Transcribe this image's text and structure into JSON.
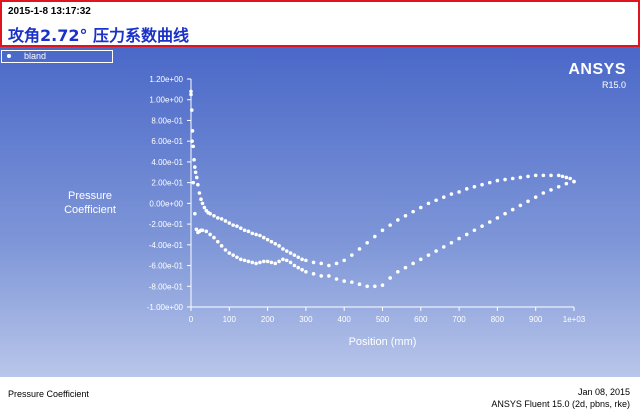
{
  "header": {
    "timestamp": "2015-1-8 13:17:32",
    "title": "攻角2.72° 压力系数曲线"
  },
  "brand": {
    "name": "ANSYS",
    "version": "R15.0"
  },
  "footer": {
    "left": "Pressure Coefficient",
    "date": "Jan 08, 2015",
    "version": "ANSYS Fluent 15.0 (2d, pbns, rke)"
  },
  "colors": {
    "header_border": "#e0141e",
    "title": "#1a32c8",
    "plot_top": "#4a68c8",
    "plot_bottom": "#b9c6ea",
    "points": "#ffffff"
  },
  "chart_data": {
    "type": "scatter",
    "xlabel": "Position (mm)",
    "ylabel_lines": [
      "Pressure",
      "Coefficient"
    ],
    "xlim": [
      0,
      1000
    ],
    "ylim": [
      -1.0,
      1.2
    ],
    "x_ticks": [
      {
        "v": 0,
        "label": "0"
      },
      {
        "v": 100,
        "label": "100"
      },
      {
        "v": 200,
        "label": "200"
      },
      {
        "v": 300,
        "label": "300"
      },
      {
        "v": 400,
        "label": "400"
      },
      {
        "v": 500,
        "label": "500"
      },
      {
        "v": 600,
        "label": "600"
      },
      {
        "v": 700,
        "label": "700"
      },
      {
        "v": 800,
        "label": "800"
      },
      {
        "v": 900,
        "label": "900"
      },
      {
        "v": 1000,
        "label": "1e+03"
      }
    ],
    "y_ticks": [
      {
        "v": 1.2,
        "label": "1.20e+00"
      },
      {
        "v": 1.0,
        "label": "1.00e+00"
      },
      {
        "v": 0.8,
        "label": "8.00e-01"
      },
      {
        "v": 0.6,
        "label": "6.00e-01"
      },
      {
        "v": 0.4,
        "label": "4.00e-01"
      },
      {
        "v": 0.2,
        "label": "2.00e-01"
      },
      {
        "v": 0.0,
        "label": "0.00e+00"
      },
      {
        "v": -0.2,
        "label": "-2.00e-01"
      },
      {
        "v": -0.4,
        "label": "-4.00e-01"
      },
      {
        "v": -0.6,
        "label": "-6.00e-01"
      },
      {
        "v": -0.8,
        "label": "-8.00e-01"
      },
      {
        "v": -1.0,
        "label": "-1.00e+00"
      }
    ],
    "legend": [
      "bland"
    ],
    "legend_position": "top-left",
    "series": [
      {
        "name": "bland",
        "upper_x": [
          0,
          2,
          4,
          6,
          8,
          10,
          12,
          15,
          18,
          22,
          26,
          30,
          35,
          40,
          45,
          50,
          60,
          70,
          80,
          90,
          100,
          110,
          120,
          130,
          140,
          150,
          160,
          170,
          180,
          190,
          200,
          210,
          220,
          230,
          240,
          250,
          260,
          270,
          280,
          290,
          300,
          320,
          340,
          360,
          380,
          400,
          420,
          440,
          460,
          480,
          500,
          520,
          540,
          560,
          580,
          600,
          620,
          640,
          660,
          680,
          700,
          720,
          740,
          760,
          780,
          800,
          820,
          840,
          860,
          880,
          900,
          920,
          940,
          960,
          970,
          980,
          990,
          1000
        ],
        "upper_y": [
          1.08,
          0.9,
          0.7,
          0.55,
          0.42,
          0.35,
          0.3,
          0.25,
          0.18,
          0.1,
          0.04,
          0.0,
          -0.04,
          -0.07,
          -0.09,
          -0.1,
          -0.12,
          -0.14,
          -0.15,
          -0.17,
          -0.19,
          -0.21,
          -0.22,
          -0.24,
          -0.26,
          -0.27,
          -0.29,
          -0.3,
          -0.31,
          -0.33,
          -0.35,
          -0.37,
          -0.39,
          -0.41,
          -0.44,
          -0.46,
          -0.48,
          -0.5,
          -0.52,
          -0.54,
          -0.55,
          -0.57,
          -0.58,
          -0.6,
          -0.58,
          -0.55,
          -0.5,
          -0.44,
          -0.38,
          -0.32,
          -0.26,
          -0.21,
          -0.16,
          -0.12,
          -0.08,
          -0.04,
          0.0,
          0.03,
          0.06,
          0.09,
          0.11,
          0.14,
          0.16,
          0.18,
          0.2,
          0.22,
          0.23,
          0.24,
          0.25,
          0.26,
          0.27,
          0.27,
          0.27,
          0.27,
          0.26,
          0.25,
          0.24,
          0.21
        ],
        "lower_x": [
          0,
          3,
          6,
          10,
          14,
          18,
          22,
          26,
          30,
          40,
          50,
          60,
          70,
          80,
          90,
          100,
          110,
          120,
          130,
          140,
          150,
          160,
          170,
          180,
          190,
          200,
          210,
          220,
          230,
          240,
          250,
          260,
          270,
          280,
          290,
          300,
          320,
          340,
          360,
          380,
          400,
          420,
          440,
          460,
          480,
          500,
          520,
          540,
          560,
          580,
          600,
          620,
          640,
          660,
          680,
          700,
          720,
          740,
          760,
          780,
          800,
          820,
          840,
          860,
          880,
          900,
          920,
          940,
          960,
          980,
          1000
        ],
        "lower_y": [
          1.05,
          0.6,
          0.2,
          -0.1,
          -0.25,
          -0.28,
          -0.27,
          -0.26,
          -0.26,
          -0.27,
          -0.3,
          -0.33,
          -0.37,
          -0.41,
          -0.45,
          -0.48,
          -0.5,
          -0.52,
          -0.54,
          -0.55,
          -0.56,
          -0.57,
          -0.58,
          -0.57,
          -0.56,
          -0.56,
          -0.57,
          -0.58,
          -0.56,
          -0.54,
          -0.55,
          -0.57,
          -0.6,
          -0.62,
          -0.64,
          -0.66,
          -0.68,
          -0.7,
          -0.7,
          -0.73,
          -0.75,
          -0.76,
          -0.78,
          -0.8,
          -0.8,
          -0.79,
          -0.72,
          -0.66,
          -0.62,
          -0.58,
          -0.54,
          -0.5,
          -0.46,
          -0.42,
          -0.38,
          -0.34,
          -0.3,
          -0.26,
          -0.22,
          -0.18,
          -0.14,
          -0.1,
          -0.06,
          -0.02,
          0.02,
          0.06,
          0.1,
          0.13,
          0.16,
          0.19,
          0.21
        ]
      }
    ]
  }
}
